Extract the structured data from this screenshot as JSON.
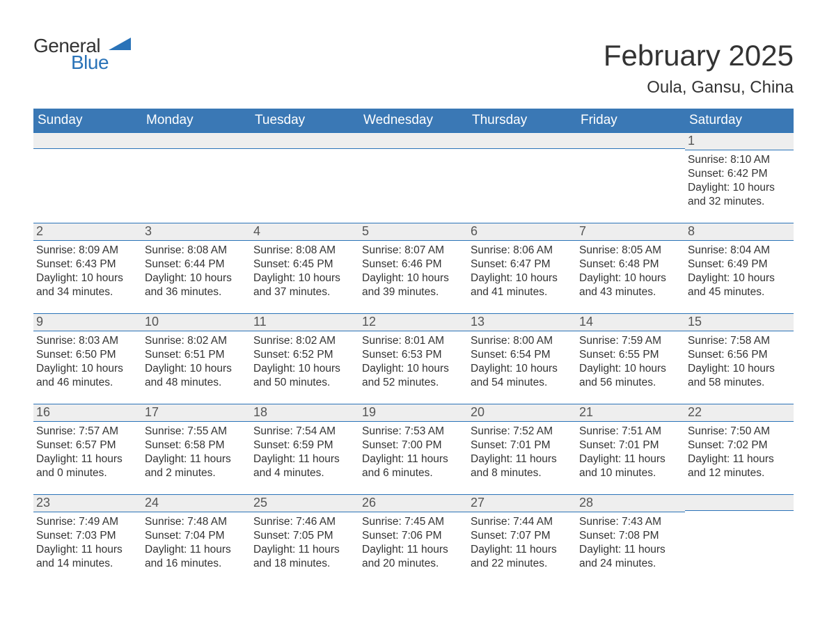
{
  "logo": {
    "word1": "General",
    "word2": "Blue",
    "accent_color": "#2a73b8"
  },
  "title": "February 2025",
  "location": "Oula, Gansu, China",
  "colors": {
    "header_bg": "#3a78b5",
    "header_text": "#ffffff",
    "daybar_bg": "#eeeeee",
    "daybar_border": "#2a73b8",
    "body_text": "#333333",
    "background": "#ffffff"
  },
  "dow": [
    "Sunday",
    "Monday",
    "Tuesday",
    "Wednesday",
    "Thursday",
    "Friday",
    "Saturday"
  ],
  "labels": {
    "sunrise": "Sunrise: ",
    "sunset": "Sunset: ",
    "daylight": "Daylight: "
  },
  "first_day_dow": 6,
  "days": [
    {
      "n": 1,
      "sunrise": "8:10 AM",
      "sunset": "6:42 PM",
      "daylight": "10 hours and 32 minutes."
    },
    {
      "n": 2,
      "sunrise": "8:09 AM",
      "sunset": "6:43 PM",
      "daylight": "10 hours and 34 minutes."
    },
    {
      "n": 3,
      "sunrise": "8:08 AM",
      "sunset": "6:44 PM",
      "daylight": "10 hours and 36 minutes."
    },
    {
      "n": 4,
      "sunrise": "8:08 AM",
      "sunset": "6:45 PM",
      "daylight": "10 hours and 37 minutes."
    },
    {
      "n": 5,
      "sunrise": "8:07 AM",
      "sunset": "6:46 PM",
      "daylight": "10 hours and 39 minutes."
    },
    {
      "n": 6,
      "sunrise": "8:06 AM",
      "sunset": "6:47 PM",
      "daylight": "10 hours and 41 minutes."
    },
    {
      "n": 7,
      "sunrise": "8:05 AM",
      "sunset": "6:48 PM",
      "daylight": "10 hours and 43 minutes."
    },
    {
      "n": 8,
      "sunrise": "8:04 AM",
      "sunset": "6:49 PM",
      "daylight": "10 hours and 45 minutes."
    },
    {
      "n": 9,
      "sunrise": "8:03 AM",
      "sunset": "6:50 PM",
      "daylight": "10 hours and 46 minutes."
    },
    {
      "n": 10,
      "sunrise": "8:02 AM",
      "sunset": "6:51 PM",
      "daylight": "10 hours and 48 minutes."
    },
    {
      "n": 11,
      "sunrise": "8:02 AM",
      "sunset": "6:52 PM",
      "daylight": "10 hours and 50 minutes."
    },
    {
      "n": 12,
      "sunrise": "8:01 AM",
      "sunset": "6:53 PM",
      "daylight": "10 hours and 52 minutes."
    },
    {
      "n": 13,
      "sunrise": "8:00 AM",
      "sunset": "6:54 PM",
      "daylight": "10 hours and 54 minutes."
    },
    {
      "n": 14,
      "sunrise": "7:59 AM",
      "sunset": "6:55 PM",
      "daylight": "10 hours and 56 minutes."
    },
    {
      "n": 15,
      "sunrise": "7:58 AM",
      "sunset": "6:56 PM",
      "daylight": "10 hours and 58 minutes."
    },
    {
      "n": 16,
      "sunrise": "7:57 AM",
      "sunset": "6:57 PM",
      "daylight": "11 hours and 0 minutes."
    },
    {
      "n": 17,
      "sunrise": "7:55 AM",
      "sunset": "6:58 PM",
      "daylight": "11 hours and 2 minutes."
    },
    {
      "n": 18,
      "sunrise": "7:54 AM",
      "sunset": "6:59 PM",
      "daylight": "11 hours and 4 minutes."
    },
    {
      "n": 19,
      "sunrise": "7:53 AM",
      "sunset": "7:00 PM",
      "daylight": "11 hours and 6 minutes."
    },
    {
      "n": 20,
      "sunrise": "7:52 AM",
      "sunset": "7:01 PM",
      "daylight": "11 hours and 8 minutes."
    },
    {
      "n": 21,
      "sunrise": "7:51 AM",
      "sunset": "7:01 PM",
      "daylight": "11 hours and 10 minutes."
    },
    {
      "n": 22,
      "sunrise": "7:50 AM",
      "sunset": "7:02 PM",
      "daylight": "11 hours and 12 minutes."
    },
    {
      "n": 23,
      "sunrise": "7:49 AM",
      "sunset": "7:03 PM",
      "daylight": "11 hours and 14 minutes."
    },
    {
      "n": 24,
      "sunrise": "7:48 AM",
      "sunset": "7:04 PM",
      "daylight": "11 hours and 16 minutes."
    },
    {
      "n": 25,
      "sunrise": "7:46 AM",
      "sunset": "7:05 PM",
      "daylight": "11 hours and 18 minutes."
    },
    {
      "n": 26,
      "sunrise": "7:45 AM",
      "sunset": "7:06 PM",
      "daylight": "11 hours and 20 minutes."
    },
    {
      "n": 27,
      "sunrise": "7:44 AM",
      "sunset": "7:07 PM",
      "daylight": "11 hours and 22 minutes."
    },
    {
      "n": 28,
      "sunrise": "7:43 AM",
      "sunset": "7:08 PM",
      "daylight": "11 hours and 24 minutes."
    }
  ]
}
